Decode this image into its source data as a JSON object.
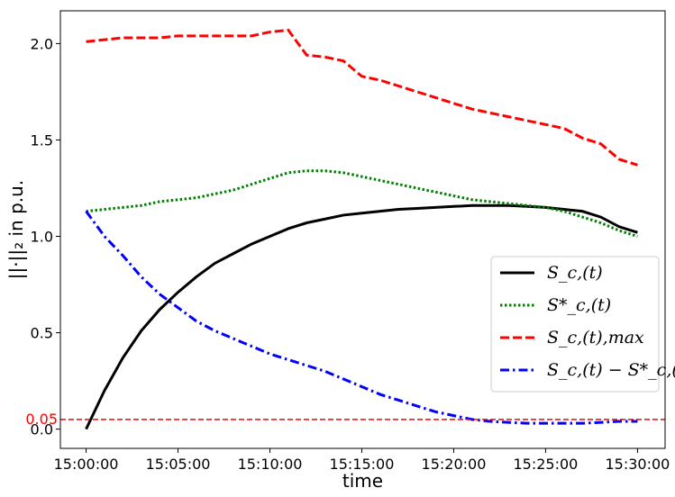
{
  "chart_data": {
    "type": "line",
    "xlabel": "time",
    "ylabel": "||·||₂ in p.u.",
    "xlim_minutes": [
      -1.4,
      31.5
    ],
    "ylim": [
      -0.1,
      2.17
    ],
    "x_ticks": [
      {
        "label": "15:00:00",
        "minute": 0
      },
      {
        "label": "15:05:00",
        "minute": 5
      },
      {
        "label": "15:10:00",
        "minute": 10
      },
      {
        "label": "15:15:00",
        "minute": 15
      },
      {
        "label": "15:20:00",
        "minute": 20
      },
      {
        "label": "15:25:00",
        "minute": 25
      },
      {
        "label": "15:30:00",
        "minute": 30
      }
    ],
    "y_ticks": [
      0.0,
      0.5,
      1.0,
      1.5,
      2.0
    ],
    "y_tick_labels": [
      "0.0",
      "0.5",
      "1.0",
      "1.5",
      "2.0"
    ],
    "threshold": {
      "value": 0.05,
      "label": "0.05",
      "color": "#ff0000"
    },
    "legend_position": "center-right",
    "grid": false,
    "series": [
      {
        "name": "S_c,(t)",
        "color": "#000000",
        "style": "solid",
        "points": [
          [
            0,
            0.0
          ],
          [
            1,
            0.2
          ],
          [
            2,
            0.37
          ],
          [
            3,
            0.51
          ],
          [
            4,
            0.62
          ],
          [
            5,
            0.71
          ],
          [
            6,
            0.79
          ],
          [
            7,
            0.86
          ],
          [
            8,
            0.91
          ],
          [
            9,
            0.96
          ],
          [
            10,
            1.0
          ],
          [
            11,
            1.04
          ],
          [
            12,
            1.07
          ],
          [
            13,
            1.09
          ],
          [
            14,
            1.11
          ],
          [
            15,
            1.12
          ],
          [
            16,
            1.13
          ],
          [
            17,
            1.14
          ],
          [
            18,
            1.145
          ],
          [
            19,
            1.15
          ],
          [
            20,
            1.155
          ],
          [
            21,
            1.16
          ],
          [
            22,
            1.16
          ],
          [
            23,
            1.16
          ],
          [
            24,
            1.155
          ],
          [
            25,
            1.15
          ],
          [
            26,
            1.14
          ],
          [
            27,
            1.13
          ],
          [
            28,
            1.1
          ],
          [
            29,
            1.05
          ],
          [
            30,
            1.02
          ]
        ]
      },
      {
        "name": "S*_c,(t)",
        "color": "#008000",
        "style": "dotted",
        "points": [
          [
            0,
            1.13
          ],
          [
            1,
            1.14
          ],
          [
            2,
            1.15
          ],
          [
            3,
            1.16
          ],
          [
            4,
            1.18
          ],
          [
            5,
            1.19
          ],
          [
            6,
            1.2
          ],
          [
            7,
            1.22
          ],
          [
            8,
            1.24
          ],
          [
            9,
            1.27
          ],
          [
            10,
            1.3
          ],
          [
            11,
            1.33
          ],
          [
            12,
            1.34
          ],
          [
            13,
            1.34
          ],
          [
            14,
            1.33
          ],
          [
            15,
            1.31
          ],
          [
            16,
            1.29
          ],
          [
            17,
            1.27
          ],
          [
            18,
            1.25
          ],
          [
            19,
            1.23
          ],
          [
            20,
            1.21
          ],
          [
            21,
            1.19
          ],
          [
            22,
            1.18
          ],
          [
            23,
            1.17
          ],
          [
            24,
            1.16
          ],
          [
            25,
            1.15
          ],
          [
            26,
            1.13
          ],
          [
            27,
            1.1
          ],
          [
            28,
            1.07
          ],
          [
            29,
            1.03
          ],
          [
            30,
            1.0
          ]
        ]
      },
      {
        "name": "S_c,(t),max",
        "color": "#ff0000",
        "style": "dashed",
        "points": [
          [
            0,
            2.01
          ],
          [
            1,
            2.02
          ],
          [
            2,
            2.03
          ],
          [
            3,
            2.03
          ],
          [
            4,
            2.03
          ],
          [
            5,
            2.04
          ],
          [
            6,
            2.04
          ],
          [
            7,
            2.04
          ],
          [
            8,
            2.04
          ],
          [
            9,
            2.04
          ],
          [
            10,
            2.06
          ],
          [
            11,
            2.07
          ],
          [
            12,
            1.94
          ],
          [
            13,
            1.93
          ],
          [
            14,
            1.91
          ],
          [
            15,
            1.83
          ],
          [
            16,
            1.81
          ],
          [
            17,
            1.78
          ],
          [
            18,
            1.75
          ],
          [
            19,
            1.72
          ],
          [
            20,
            1.69
          ],
          [
            21,
            1.66
          ],
          [
            22,
            1.64
          ],
          [
            23,
            1.62
          ],
          [
            24,
            1.6
          ],
          [
            25,
            1.58
          ],
          [
            26,
            1.56
          ],
          [
            27,
            1.51
          ],
          [
            28,
            1.48
          ],
          [
            29,
            1.4
          ],
          [
            30,
            1.37
          ]
        ]
      },
      {
        "name": "S_c,(t) − S*_c,(t)",
        "color": "#0000ff",
        "style": "dashdot",
        "points": [
          [
            0,
            1.13
          ],
          [
            1,
            1.0
          ],
          [
            2,
            0.9
          ],
          [
            3,
            0.79
          ],
          [
            4,
            0.7
          ],
          [
            5,
            0.63
          ],
          [
            6,
            0.56
          ],
          [
            7,
            0.51
          ],
          [
            8,
            0.47
          ],
          [
            9,
            0.43
          ],
          [
            10,
            0.39
          ],
          [
            11,
            0.36
          ],
          [
            12,
            0.33
          ],
          [
            13,
            0.3
          ],
          [
            14,
            0.26
          ],
          [
            15,
            0.22
          ],
          [
            16,
            0.18
          ],
          [
            17,
            0.15
          ],
          [
            18,
            0.12
          ],
          [
            19,
            0.09
          ],
          [
            20,
            0.07
          ],
          [
            21,
            0.05
          ],
          [
            22,
            0.04
          ],
          [
            23,
            0.035
          ],
          [
            24,
            0.03
          ],
          [
            25,
            0.03
          ],
          [
            26,
            0.03
          ],
          [
            27,
            0.03
          ],
          [
            28,
            0.035
          ],
          [
            29,
            0.04
          ],
          [
            30,
            0.04
          ]
        ]
      }
    ]
  }
}
